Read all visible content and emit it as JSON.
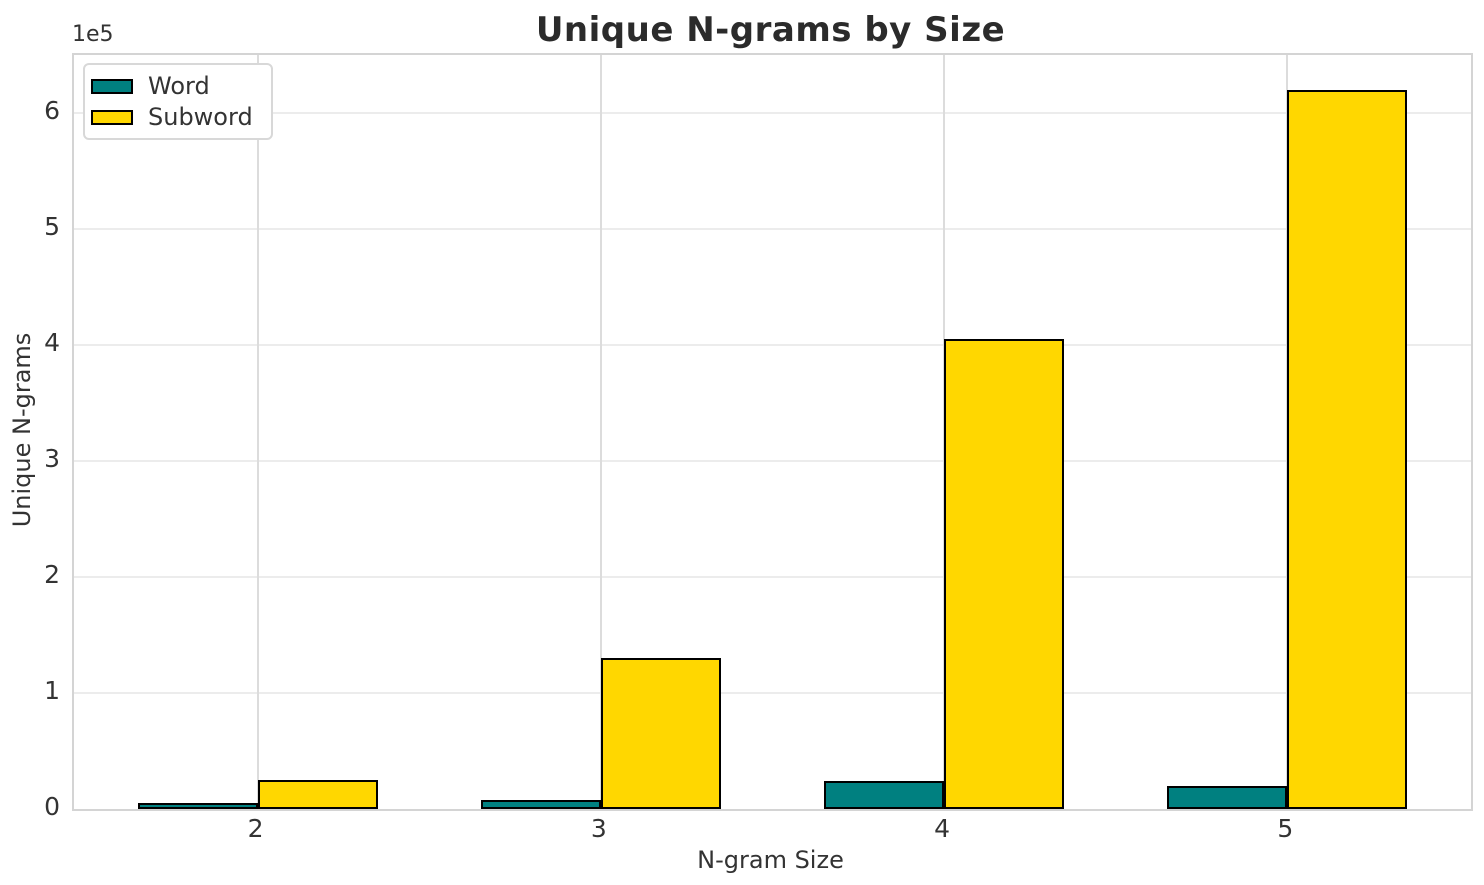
{
  "chart_data": {
    "type": "bar",
    "title": "Unique N-grams by Size",
    "xlabel": "N-gram Size",
    "ylabel": "Unique N-grams",
    "y_offset_text": "1e5",
    "categories": [
      "2",
      "3",
      "4",
      "5"
    ],
    "series": [
      {
        "name": "Word",
        "color": "#008080",
        "edge_color": "#000000",
        "values": [
          5000,
          8000,
          24000,
          20000
        ]
      },
      {
        "name": "Subword",
        "color": "#FFD700",
        "edge_color": "#000000",
        "values": [
          25000,
          130000,
          405000,
          620000
        ]
      }
    ],
    "ylim": [
      0,
      650000
    ],
    "yticks": {
      "values": [
        0,
        100000,
        200000,
        300000,
        400000,
        500000,
        600000
      ],
      "labels": [
        "0",
        "1",
        "2",
        "3",
        "4",
        "5",
        "6"
      ]
    },
    "grid": true,
    "legend": {
      "position": "upper-left",
      "entries": [
        "Word",
        "Subword"
      ]
    },
    "bar_width_fraction": 0.35
  },
  "colors": {
    "background": "#ffffff",
    "title": "#2b2b2b",
    "tick_label": "#333333",
    "axis_label": "#333333",
    "spine": "#d4d4d4",
    "grid_horizontal": "#ececec",
    "grid_vertical": "#dcdcdc",
    "legend_border": "#d8d8d8",
    "legend_background": "#ffffff"
  }
}
